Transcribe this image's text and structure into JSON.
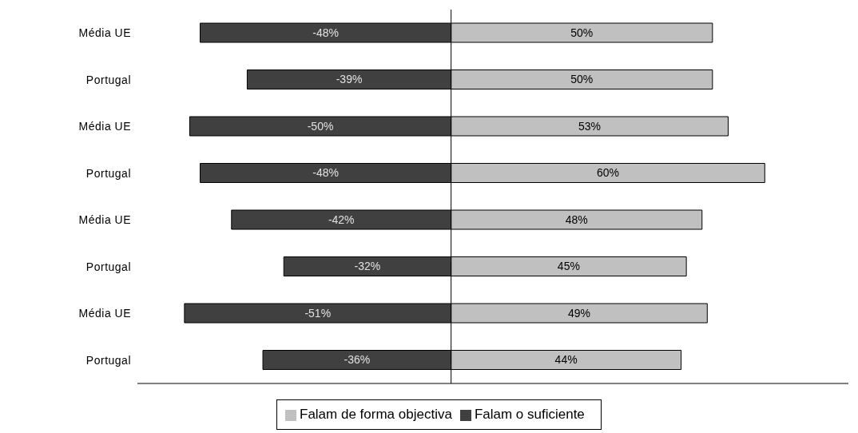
{
  "chart_data": {
    "type": "bar",
    "orientation": "horizontal",
    "stacked": true,
    "categories": [
      "Média UE",
      "Portugal",
      "Média UE",
      "Portugal",
      "Média UE",
      "Portugal",
      "Média UE",
      "Portugal"
    ],
    "series": [
      {
        "name": "Falam o suficiente",
        "color": "#404040",
        "values": [
          -48,
          -39,
          -50,
          -48,
          -42,
          -32,
          -51,
          -36
        ],
        "value_labels": [
          "-48%",
          "-39%",
          "-50%",
          "-48%",
          "-42%",
          "-32%",
          "-51%",
          "-36%"
        ]
      },
      {
        "name": "Falam de forma objectiva",
        "color": "#c0c0c0",
        "values": [
          50,
          50,
          53,
          60,
          48,
          45,
          49,
          44
        ],
        "value_labels": [
          "50%",
          "50%",
          "53%",
          "60%",
          "48%",
          "45%",
          "49%",
          "44%"
        ]
      }
    ],
    "xlim": [
      -60,
      76
    ],
    "legend": "bottom",
    "grid": false
  }
}
